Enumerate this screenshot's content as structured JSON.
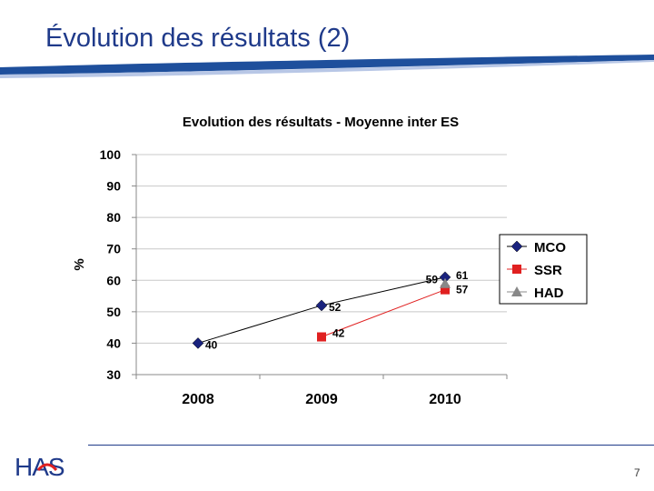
{
  "slide": {
    "title": "Évolution des résultats (2)",
    "page_number": "7",
    "logo_text": "HAS"
  },
  "colors": {
    "title": "#1f3a8a",
    "swoosh": "#1e4f9c",
    "mco": "#1a237e",
    "ssr": "#e02020",
    "had": "#888888"
  },
  "chart_data": {
    "type": "line",
    "title": "Evolution des résultats - Moyenne inter ES",
    "ylabel": "%",
    "xlabel": "",
    "categories": [
      "2008",
      "2009",
      "2010"
    ],
    "ylim": [
      30,
      100
    ],
    "yticks": [
      30,
      40,
      50,
      60,
      70,
      80,
      90,
      100
    ],
    "grid": true,
    "legend": "right",
    "series": [
      {
        "name": "MCO",
        "values": [
          40,
          52,
          61
        ],
        "marker": "diamond",
        "color": "#1a237e",
        "line_color": "#000000"
      },
      {
        "name": "SSR",
        "values": [
          null,
          42,
          57
        ],
        "marker": "square",
        "color": "#e02020",
        "line_color": "#e02020"
      },
      {
        "name": "HAD",
        "values": [
          null,
          null,
          59
        ],
        "marker": "triangle",
        "color": "#888888",
        "line_color": "#888888"
      }
    ]
  }
}
